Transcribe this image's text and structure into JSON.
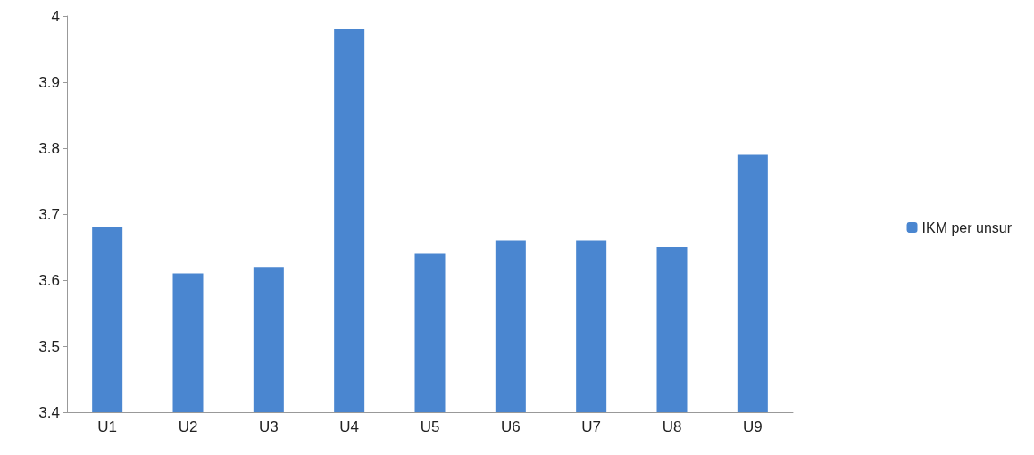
{
  "chart_data": {
    "type": "bar",
    "categories": [
      "U1",
      "U2",
      "U3",
      "U4",
      "U5",
      "U6",
      "U7",
      "U8",
      "U9"
    ],
    "series": [
      {
        "name": "IKM per unsur",
        "color": "#4a86d0",
        "values": [
          3.68,
          3.61,
          3.62,
          3.98,
          3.64,
          3.66,
          3.66,
          3.65,
          3.79
        ]
      }
    ],
    "ylim": [
      3.4,
      4
    ],
    "yticks": [
      3.4,
      3.5,
      3.6,
      3.7,
      3.8,
      3.9,
      4
    ],
    "grid": false,
    "legend": "right"
  }
}
